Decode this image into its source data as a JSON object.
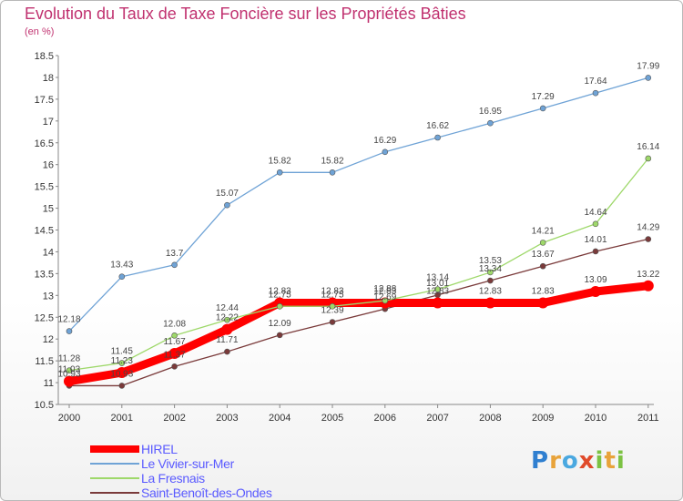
{
  "title": "Evolution du Taux de Taxe Foncière sur les Propriétés Bâties",
  "unit_label": "(en %)",
  "logo": {
    "letters": [
      {
        "char": "P",
        "color": "#2f7fd0"
      },
      {
        "char": "r",
        "color": "#e8a33a"
      },
      {
        "char": "o",
        "color": "#4aa8e0"
      },
      {
        "char": "x",
        "color": "#e04a2a"
      },
      {
        "char": "i",
        "color": "#7cc243"
      },
      {
        "char": "t",
        "color": "#e8a33a"
      },
      {
        "char": "i",
        "color": "#7cc243"
      }
    ]
  },
  "chart_data": {
    "type": "line",
    "x": [
      "2000",
      "2001",
      "2002",
      "2003",
      "2004",
      "2005",
      "2006",
      "2007",
      "2008",
      "2009",
      "2010",
      "2011"
    ],
    "ylim": [
      10.5,
      18.5
    ],
    "yticks": [
      "10.5",
      "11",
      "11.5",
      "12",
      "12.5",
      "13",
      "13.5",
      "14",
      "14.5",
      "15",
      "15.5",
      "16",
      "16.5",
      "17",
      "17.5",
      "18",
      "18.5"
    ],
    "grid": false,
    "legend_position": "bottom-left",
    "series": [
      {
        "name": "HIREL",
        "color": "#ff0000",
        "values": [
          11.03,
          11.23,
          11.67,
          12.22,
          12.83,
          12.83,
          12.83,
          12.83,
          12.83,
          12.83,
          13.09,
          13.22
        ],
        "labels": [
          "11.03",
          "11.23",
          "11.67",
          "12.22",
          "12.83",
          "12.83",
          "12.83",
          "12.83",
          "12.83",
          "12.83",
          "13.09",
          "13.22"
        ]
      },
      {
        "name": "Le Vivier-sur-Mer",
        "color": "#6fa3d6",
        "values": [
          12.18,
          13.43,
          13.7,
          15.07,
          15.82,
          15.82,
          16.29,
          16.62,
          16.95,
          17.29,
          17.64,
          17.99
        ],
        "labels": [
          "12.18",
          "13.43",
          "13.7",
          "15.07",
          "15.82",
          "15.82",
          "16.29",
          "16.62",
          "16.95",
          "17.29",
          "17.64",
          "17.99"
        ]
      },
      {
        "name": "La Fresnais",
        "color": "#9ed86a",
        "values": [
          11.28,
          11.45,
          12.08,
          12.44,
          12.75,
          12.75,
          12.88,
          13.14,
          13.53,
          14.21,
          14.64,
          16.14
        ],
        "labels": [
          "11.28",
          "11.45",
          "12.08",
          "12.44",
          "12.75",
          "12.75",
          "12.88",
          "13.14",
          "13.53",
          "14.21",
          "14.64",
          "16.14"
        ]
      },
      {
        "name": "Saint-Benoît-des-Ondes",
        "color": "#7a3a3a",
        "values": [
          10.93,
          10.93,
          11.37,
          11.71,
          12.09,
          12.39,
          12.69,
          13.01,
          13.34,
          13.67,
          14.01,
          14.29
        ],
        "labels": [
          "10.93",
          "10.93",
          "11.37",
          "11.71",
          "12.09",
          "12.39",
          "12.69",
          "13.01",
          "13.34",
          "13.67",
          "14.01",
          "14.29"
        ]
      }
    ]
  }
}
